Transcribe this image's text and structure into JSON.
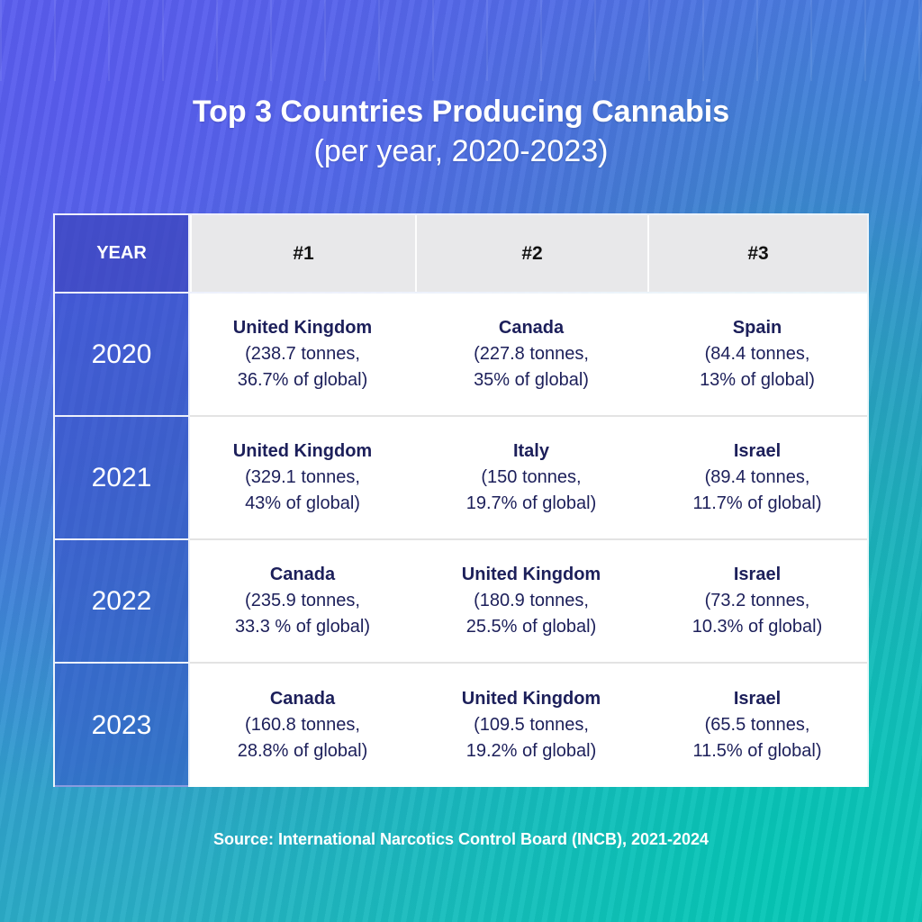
{
  "title": {
    "line1": "Top 3 Countries Producing Cannabis",
    "line2": "(per year, 2020-2023)"
  },
  "chart_data": {
    "type": "table",
    "title": "Top 3 Countries Producing Cannabis (per year, 2020-2023)",
    "columns": [
      "YEAR",
      "#1",
      "#2",
      "#3"
    ],
    "rows": [
      {
        "year": "2020",
        "entries": [
          {
            "country": "United Kingdom",
            "amount": "(238.7 tonnes,",
            "share": "36.7% of global)"
          },
          {
            "country": "Canada",
            "amount": "(227.8 tonnes,",
            "share": "35% of global)"
          },
          {
            "country": "Spain",
            "amount": "(84.4 tonnes,",
            "share": "13% of global)"
          }
        ]
      },
      {
        "year": "2021",
        "entries": [
          {
            "country": "United Kingdom",
            "amount": "(329.1 tonnes,",
            "share": "43% of global)"
          },
          {
            "country": "Italy",
            "amount": "(150 tonnes,",
            "share": "19.7% of global)"
          },
          {
            "country": "Israel",
            "amount": "(89.4 tonnes,",
            "share": "11.7% of global)"
          }
        ]
      },
      {
        "year": "2022",
        "entries": [
          {
            "country": "Canada",
            "amount": "(235.9 tonnes,",
            "share": "33.3 % of global)"
          },
          {
            "country": "United Kingdom",
            "amount": "(180.9 tonnes,",
            "share": "25.5% of global)"
          },
          {
            "country": "Israel",
            "amount": "(73.2 tonnes,",
            "share": "10.3% of global)"
          }
        ]
      },
      {
        "year": "2023",
        "entries": [
          {
            "country": "Canada",
            "amount": "(160.8 tonnes,",
            "share": "28.8% of global)"
          },
          {
            "country": "United Kingdom",
            "amount": "(109.5 tonnes,",
            "share": "19.2% of global)"
          },
          {
            "country": "Israel",
            "amount": "(65.5 tonnes,",
            "share": "11.5% of global)"
          }
        ]
      }
    ]
  },
  "source": "Source: International Narcotics Control Board (INCB), 2021-2024",
  "colors": {
    "accent_text": "#1c1f5a",
    "header_bg": "#e8e8ea",
    "gradient_start": "#5a67e8",
    "gradient_end": "#1fc4bc"
  }
}
